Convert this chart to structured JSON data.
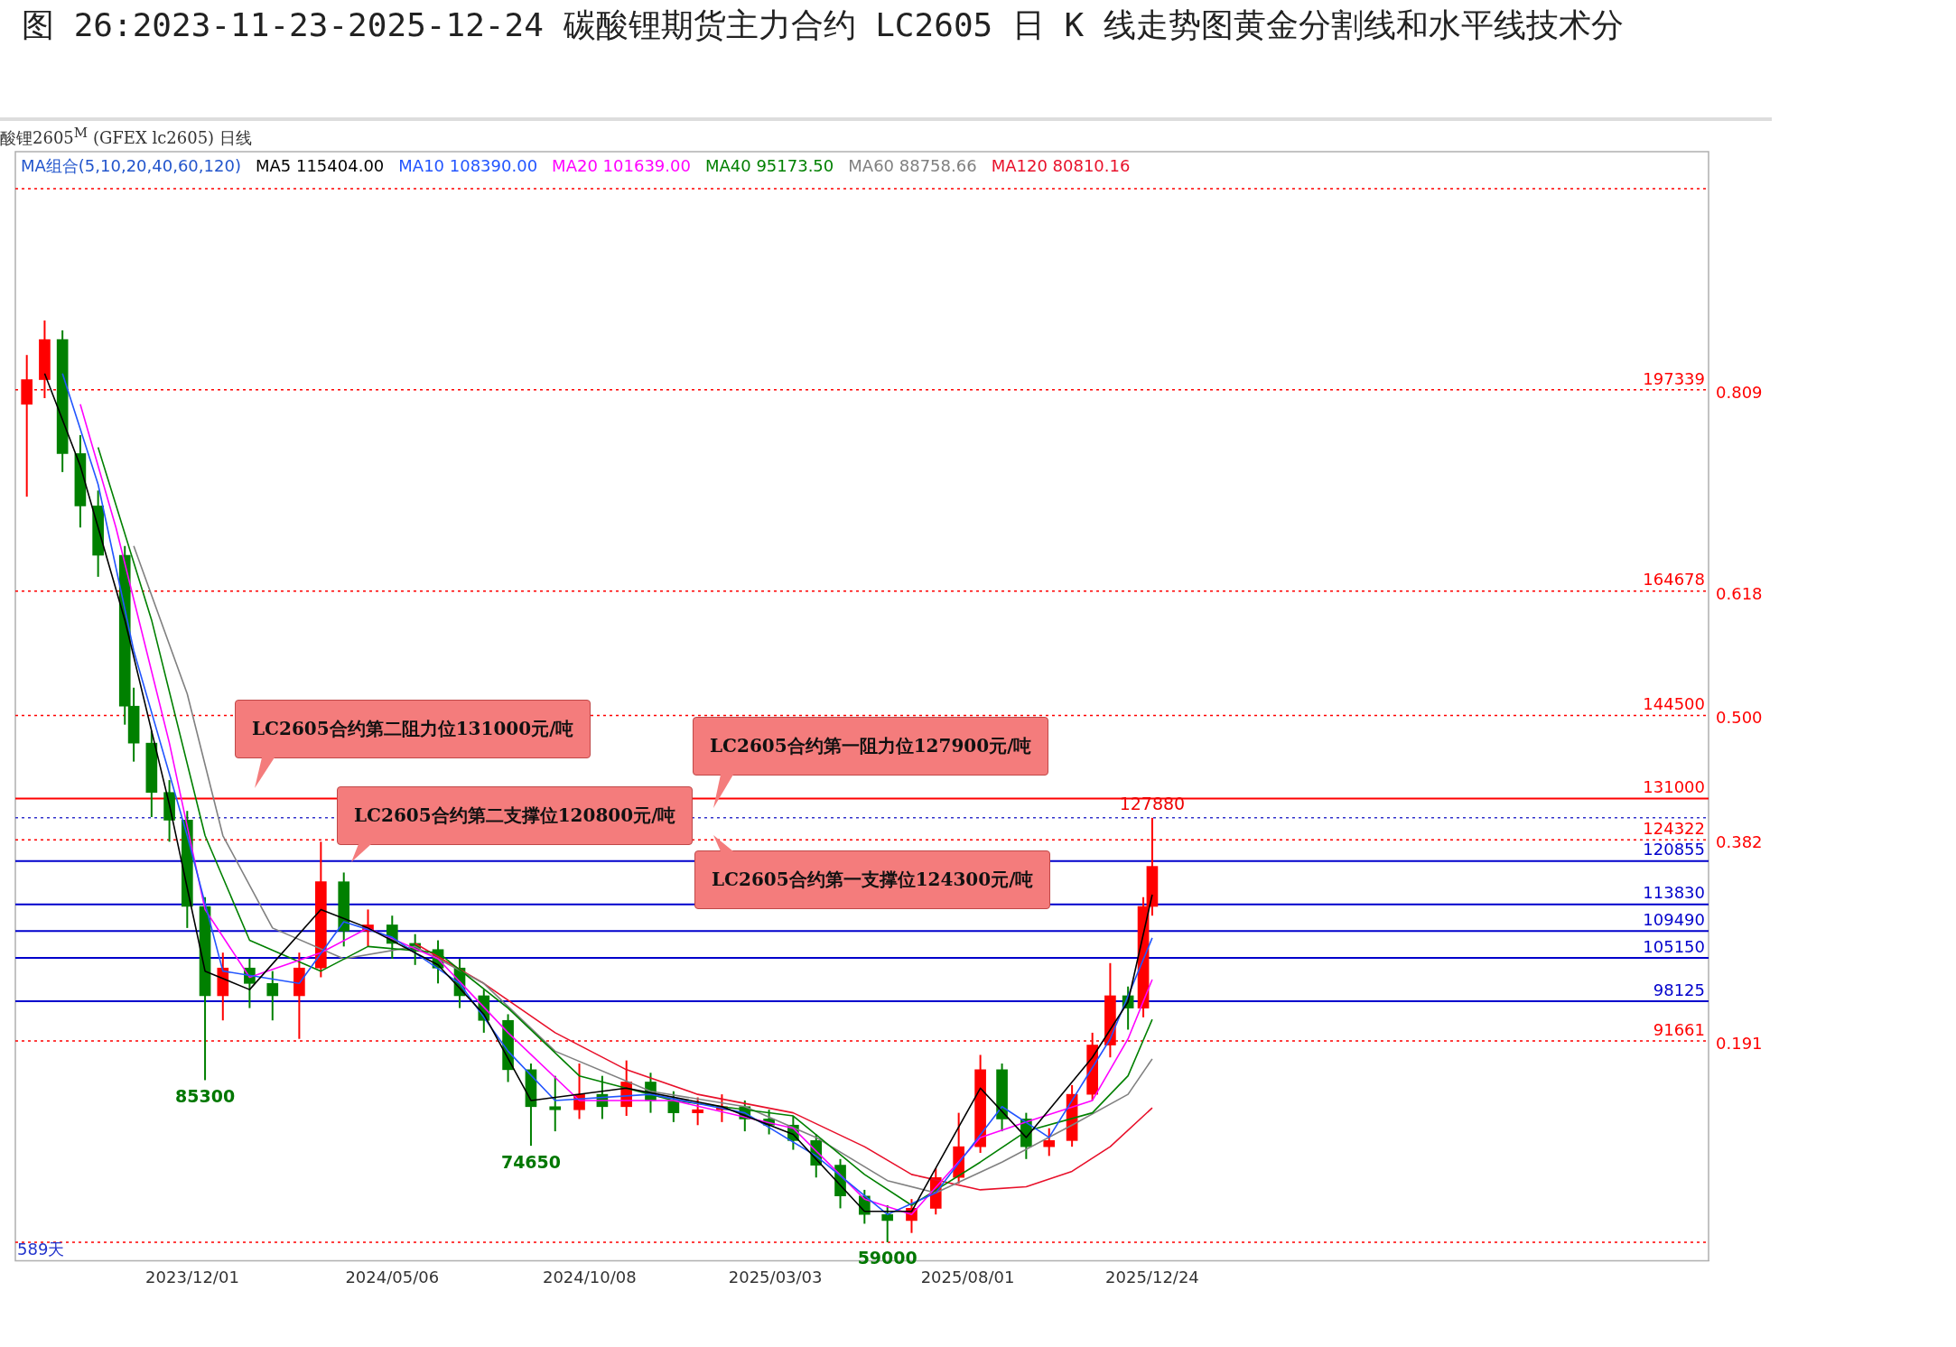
{
  "chart_data": {
    "type": "candlestick",
    "title": "图 26:2023-11-23-2025-12-24 碳酸锂期货主力合约 LC2605 日 K 线走势图黄金分割线和水平线技术分",
    "x": [
      "2023-07-24",
      "2023-08-07",
      "2023-08-21",
      "2023-09-04",
      "2023-09-18",
      "2023-10-09",
      "2023-10-16",
      "2023-10-30",
      "2023-11-13",
      "2023-11-27",
      "2023-12-11",
      "2023-12-25",
      "2024-01-15",
      "2024-02-02",
      "2024-02-23",
      "2024-03-11",
      "2024-03-29",
      "2024-04-17",
      "2024-05-06",
      "2024-05-24",
      "2024-06-11",
      "2024-06-28",
      "2024-07-17",
      "2024-08-05",
      "2024-08-23",
      "2024-09-11",
      "2024-09-30",
      "2024-10-18",
      "2024-11-06",
      "2024-11-25",
      "2024-12-13",
      "2025-01-01",
      "2025-01-20",
      "2025-02-07",
      "2025-02-26",
      "2025-03-17",
      "2025-04-04",
      "2025-04-23",
      "2025-05-12",
      "2025-05-30",
      "2025-06-18",
      "2025-07-07",
      "2025-07-25",
      "2025-08-11",
      "2025-08-28",
      "2025-09-16",
      "2025-10-04",
      "2025-10-22",
      "2025-11-07",
      "2025-11-21",
      "2025-12-05",
      "2025-12-17",
      "2025-12-24"
    ],
    "ohlc": [
      [
        195000,
        203000,
        180000,
        199000
      ],
      [
        199000,
        208600,
        196000,
        205500
      ],
      [
        205500,
        207000,
        184000,
        187000
      ],
      [
        187000,
        190000,
        175000,
        178500
      ],
      [
        178500,
        181000,
        167000,
        170500
      ],
      [
        170500,
        172000,
        143000,
        146000
      ],
      [
        146000,
        149000,
        137000,
        140000
      ],
      [
        140000,
        142000,
        128000,
        132000
      ],
      [
        132000,
        134000,
        124000,
        127500
      ],
      [
        127500,
        129000,
        110000,
        113500
      ],
      [
        113500,
        115000,
        85300,
        99000
      ],
      [
        99000,
        106000,
        95000,
        103500
      ],
      [
        103500,
        105000,
        97000,
        101000
      ],
      [
        101000,
        103000,
        95000,
        99000
      ],
      [
        99000,
        106000,
        92000,
        103500
      ],
      [
        103500,
        124000,
        102000,
        117500
      ],
      [
        117500,
        119000,
        107000,
        109500
      ],
      [
        109500,
        113000,
        107000,
        110500
      ],
      [
        110500,
        112000,
        105000,
        107500
      ],
      [
        107500,
        109000,
        104000,
        106500
      ],
      [
        106500,
        108000,
        101000,
        103500
      ],
      [
        103500,
        105000,
        97000,
        99000
      ],
      [
        99000,
        100000,
        93000,
        95000
      ],
      [
        95000,
        96000,
        85000,
        87000
      ],
      [
        87000,
        88000,
        74650,
        81000
      ],
      [
        81000,
        86000,
        77000,
        80500
      ],
      [
        80500,
        88000,
        79000,
        83000
      ],
      [
        83000,
        86000,
        79000,
        81000
      ],
      [
        81000,
        88500,
        79500,
        85000
      ],
      [
        85000,
        86500,
        80000,
        82000
      ],
      [
        82000,
        83500,
        78500,
        80000
      ],
      [
        80000,
        82500,
        78000,
        80500
      ],
      [
        80500,
        83000,
        78500,
        81000
      ],
      [
        81000,
        82000,
        77000,
        79000
      ],
      [
        79000,
        80500,
        76500,
        78000
      ],
      [
        78000,
        79500,
        74000,
        75500
      ],
      [
        75500,
        76500,
        69500,
        71500
      ],
      [
        71500,
        72500,
        64500,
        66500
      ],
      [
        66500,
        67500,
        62000,
        63500
      ],
      [
        63500,
        65000,
        59000,
        62500
      ],
      [
        62500,
        66000,
        60500,
        64500
      ],
      [
        64500,
        71000,
        63500,
        69500
      ],
      [
        69500,
        80000,
        68500,
        74500
      ],
      [
        74500,
        89400,
        73500,
        87000
      ],
      [
        87000,
        88000,
        77000,
        79000
      ],
      [
        79000,
        80000,
        72500,
        74500
      ],
      [
        74500,
        77500,
        73000,
        75500
      ],
      [
        75500,
        84500,
        74500,
        83000
      ],
      [
        83000,
        93000,
        82000,
        91000
      ],
      [
        91000,
        104300,
        89000,
        99000
      ],
      [
        99000,
        100500,
        93500,
        97000
      ],
      [
        97000,
        115000,
        95500,
        113500
      ],
      [
        113500,
        127880,
        112000,
        120000
      ]
    ],
    "colors": [
      "#ff0000",
      "#ff0000",
      "#008000",
      "#008000",
      "#008000",
      "#008000",
      "#008000",
      "#008000",
      "#008000",
      "#008000",
      "#008000",
      "#ff0000",
      "#008000",
      "#008000",
      "#ff0000",
      "#ff0000",
      "#008000",
      "#ff0000",
      "#008000",
      "#008000",
      "#008000",
      "#008000",
      "#008000",
      "#008000",
      "#008000",
      "#008000",
      "#ff0000",
      "#008000",
      "#ff0000",
      "#008000",
      "#008000",
      "#ff0000",
      "#ff0000",
      "#008000",
      "#008000",
      "#008000",
      "#008000",
      "#008000",
      "#008000",
      "#008000",
      "#ff0000",
      "#ff0000",
      "#ff0000",
      "#ff0000",
      "#008000",
      "#008000",
      "#ff0000",
      "#ff0000",
      "#ff0000",
      "#ff0000",
      "#008000",
      "#ff0000",
      "#ff0000"
    ],
    "series": [
      {
        "type": "line",
        "name": "MA5 115404.00",
        "color": "#000000",
        "x": [
          "2023-08-07",
          "2023-09-04",
          "2023-10-09",
          "2023-11-13",
          "2023-12-11",
          "2024-01-15",
          "2024-03-11",
          "2024-04-17",
          "2024-06-11",
          "2024-07-17",
          "2024-08-23",
          "2024-11-06",
          "2025-01-20",
          "2025-03-17",
          "2025-05-12",
          "2025-06-18",
          "2025-08-11",
          "2025-09-16",
          "2025-11-07",
          "2025-12-05",
          "2025-12-24"
        ],
        "values": [
          200000,
          185000,
          160000,
          130000,
          103000,
          100000,
          113000,
          110000,
          104000,
          96000,
          82000,
          84000,
          81000,
          76500,
          64000,
          64000,
          84000,
          76000,
          89000,
          98000,
          115404
        ]
      },
      {
        "type": "line",
        "name": "MA10 108390.00",
        "color": "#2255ff",
        "x": [
          "2023-08-21",
          "2023-09-18",
          "2023-10-16",
          "2023-11-27",
          "2023-12-25",
          "2024-02-23",
          "2024-03-29",
          "2024-05-06",
          "2024-06-28",
          "2024-08-05",
          "2024-09-11",
          "2024-11-25",
          "2025-02-07",
          "2025-04-04",
          "2025-05-30",
          "2025-07-07",
          "2025-08-28",
          "2025-10-04",
          "2025-11-21",
          "2025-12-24"
        ],
        "values": [
          200000,
          182000,
          155000,
          125000,
          103000,
          101000,
          111000,
          108500,
          101000,
          90000,
          82000,
          83000,
          80000,
          73000,
          63500,
          67000,
          81000,
          76000,
          92000,
          108390
        ]
      },
      {
        "type": "line",
        "name": "MA20 101639.00",
        "color": "#ff00ff",
        "x": [
          "2023-09-04",
          "2023-10-02",
          "2023-11-13",
          "2023-12-11",
          "2024-01-15",
          "2024-03-11",
          "2024-04-17",
          "2024-06-11",
          "2024-08-05",
          "2024-09-30",
          "2024-12-13",
          "2025-03-17",
          "2025-05-12",
          "2025-06-18",
          "2025-08-11",
          "2025-09-16",
          "2025-11-07",
          "2025-12-05",
          "2025-12-24"
        ],
        "values": [
          195000,
          175000,
          140000,
          113000,
          102000,
          106000,
          110000,
          105000,
          93000,
          82000,
          82000,
          77500,
          66000,
          63500,
          76000,
          78500,
          82000,
          92000,
          101639
        ]
      },
      {
        "type": "line",
        "name": "MA40 95173.50",
        "color": "#008000",
        "x": [
          "2023-09-18",
          "2023-10-30",
          "2023-12-11",
          "2024-01-15",
          "2024-03-11",
          "2024-04-17",
          "2024-06-11",
          "2024-08-05",
          "2024-09-30",
          "2024-12-13",
          "2025-03-17",
          "2025-05-12",
          "2025-06-18",
          "2025-08-11",
          "2025-09-16",
          "2025-11-07",
          "2025-12-05",
          "2025-12-24"
        ],
        "values": [
          188000,
          160000,
          125000,
          108000,
          103000,
          107000,
          106000,
          97000,
          86000,
          82000,
          79500,
          70000,
          65000,
          72000,
          77000,
          80000,
          86000,
          95173.5
        ]
      },
      {
        "type": "line",
        "name": "MA60 88758.66",
        "color": "#808080",
        "x": [
          "2023-10-16",
          "2023-11-27",
          "2023-12-25",
          "2024-02-02",
          "2024-03-29",
          "2024-05-24",
          "2024-07-17",
          "2024-09-11",
          "2024-11-25",
          "2025-02-07",
          "2025-04-04",
          "2025-05-30",
          "2025-07-07",
          "2025-08-28",
          "2025-10-22",
          "2025-12-05",
          "2025-12-24"
        ],
        "values": [
          172000,
          148000,
          125000,
          110000,
          105000,
          107000,
          101000,
          90000,
          83500,
          81000,
          76000,
          69000,
          67000,
          72000,
          78000,
          83000,
          88758.66
        ]
      },
      {
        "type": "line",
        "name": "MA120 80810.16",
        "color": "#e8102a",
        "x": [
          "2024-05-24",
          "2024-07-17",
          "2024-09-11",
          "2024-11-06",
          "2025-01-01",
          "2025-03-17",
          "2025-05-12",
          "2025-06-18",
          "2025-08-11",
          "2025-09-16",
          "2025-10-22",
          "2025-11-21",
          "2025-12-24"
        ],
        "values": [
          107500,
          101000,
          93000,
          87000,
          83000,
          80000,
          74500,
          70000,
          67500,
          68000,
          70500,
          74500,
          80810.16
        ]
      }
    ],
    "xlim": [
      "2023-07-15",
      "2027-03-06"
    ],
    "xticks": [
      {
        "value": "2023-12-01",
        "label": "2023/12/01"
      },
      {
        "value": "2024-05-06",
        "label": "2024/05/06"
      },
      {
        "value": "2024-10-08",
        "label": "2024/10/08"
      },
      {
        "value": "2025-03-03",
        "label": "2025/03/03"
      },
      {
        "value": "2025-08-01",
        "label": "2025/08/01"
      },
      {
        "value": "2025-12-24",
        "label": "2025/12/24"
      }
    ],
    "ylim": [
      56000,
      236000
    ],
    "tick_labels": "x",
    "legend": "top",
    "ref_lines": [
      {
        "axis": "y",
        "value": 230000,
        "color": "#ff0000",
        "line_style": "dotted"
      },
      {
        "axis": "y",
        "value": 197339,
        "label": "197339",
        "color": "#ff0000",
        "line_style": "dotted"
      },
      {
        "axis": "y",
        "value": 164678,
        "label": "164678",
        "color": "#ff0000",
        "line_style": "dotted"
      },
      {
        "axis": "y",
        "value": 144500,
        "label": "144500",
        "color": "#ff0000",
        "line_style": "dotted"
      },
      {
        "axis": "y",
        "value": 131000,
        "label": "131000",
        "color": "#ff0000",
        "line_style": "solid"
      },
      {
        "axis": "y",
        "value": 127880,
        "color": "#3333cc",
        "line_style": "dotted"
      },
      {
        "axis": "y",
        "value": 124322,
        "label": "124322",
        "color": "#ff0000",
        "line_style": "dotted"
      },
      {
        "axis": "y",
        "value": 120855,
        "label": "120855",
        "color": "#0000cc",
        "line_style": "solid"
      },
      {
        "axis": "y",
        "value": 113830,
        "label": "113830",
        "color": "#0000cc",
        "line_style": "solid"
      },
      {
        "axis": "y",
        "value": 109490,
        "label": "109490",
        "color": "#0000cc",
        "line_style": "solid"
      },
      {
        "axis": "y",
        "value": 105150,
        "label": "105150",
        "color": "#0000cc",
        "line_style": "solid"
      },
      {
        "axis": "y",
        "value": 98125,
        "label": "98125",
        "color": "#0000cc",
        "line_style": "solid"
      },
      {
        "axis": "y",
        "value": 91661,
        "label": "91661",
        "color": "#ff0000",
        "line_style": "dotted"
      },
      {
        "axis": "y",
        "value": 59000,
        "color": "#ff0000",
        "line_style": "dotted"
      }
    ],
    "annotations": [
      "酸锂2605$^{M}$ (GFEX lc2605)  日线",
      "MA组合(5,10,20,40,60,120)",
      "589天",
      "LC2605合约第二阻力位131000元/吨",
      "LC2605合约第一阻力位127900元/吨",
      "LC2605合约第二支撑位120800元/吨",
      "LC2605合约第一支撑位124300元/吨",
      "0.809",
      "0.618",
      "0.500",
      "0.382",
      "0.191",
      {
        "text": "85300",
        "x": "2023-12-11",
        "y": 85300
      },
      {
        "text": "74650",
        "x": "2024-08-23",
        "y": 74650
      },
      {
        "text": "59000",
        "x": "2025-05-30",
        "y": 59000
      },
      {
        "text": "127880",
        "x": "2025-12-24",
        "y": 127880
      }
    ]
  }
}
